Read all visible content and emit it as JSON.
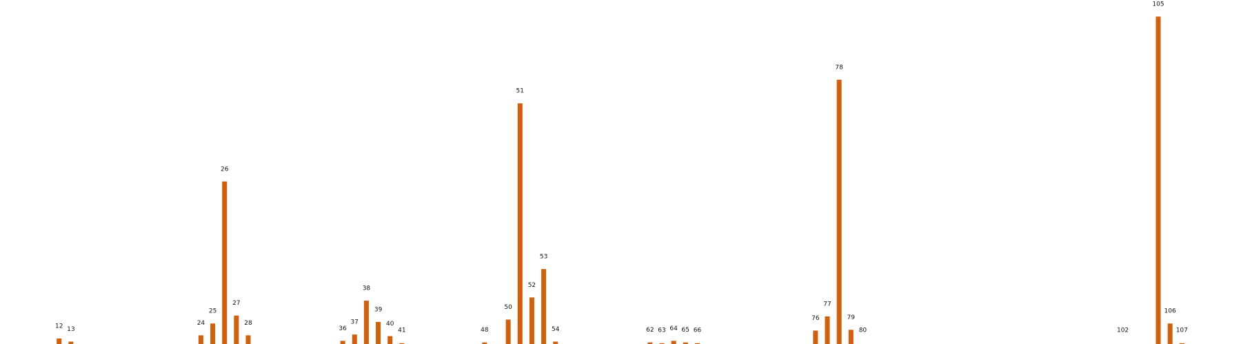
{
  "chart_data": {
    "type": "bar",
    "color": "#d35f0b",
    "x": [
      12,
      13,
      24,
      25,
      26,
      27,
      28,
      36,
      37,
      38,
      39,
      40,
      41,
      48,
      50,
      51,
      52,
      53,
      54,
      62,
      63,
      64,
      65,
      66,
      76,
      77,
      78,
      79,
      80,
      102,
      105,
      106,
      107
    ],
    "values": [
      7,
      3,
      11,
      26,
      206,
      36,
      11,
      4,
      12,
      55,
      28,
      10,
      1,
      2,
      31,
      305,
      59,
      95,
      3,
      2,
      1,
      4,
      2,
      1,
      17,
      35,
      335,
      18,
      0,
      0,
      415,
      26,
      1
    ],
    "xlim": [
      7,
      112
    ],
    "ylim": [
      0,
      436
    ]
  }
}
